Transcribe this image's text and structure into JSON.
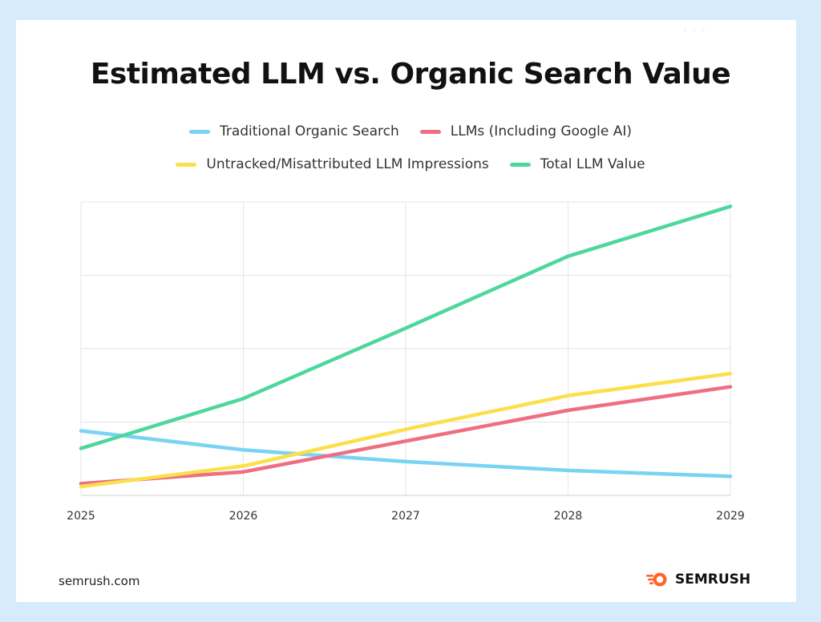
{
  "footer": {
    "site": "semrush.com",
    "brand": "SEMRUSH"
  },
  "colors": {
    "background": "#d6ecfb",
    "brand_orange": "#ff642d"
  },
  "chart_data": {
    "type": "line",
    "title": "Estimated LLM vs. Organic Search Value",
    "xlabel": "",
    "ylabel": "",
    "categories": [
      "2025",
      "2026",
      "2027",
      "2028",
      "2029"
    ],
    "ylim": [
      0,
      100
    ],
    "grid": true,
    "legend_position": "top-center",
    "series": [
      {
        "name": "Traditional Organic Search",
        "color": "#79d3f2",
        "values": [
          22,
          15.5,
          11.5,
          8.5,
          6.5
        ]
      },
      {
        "name": "LLMs (Including Google AI)",
        "color": "#ee6e83",
        "values": [
          4,
          8,
          18.5,
          29,
          37
        ]
      },
      {
        "name": "Untracked/Misattributed LLM Impressions",
        "color": "#fbe04a",
        "values": [
          3,
          10,
          22.5,
          34,
          41.5
        ]
      },
      {
        "name": "Total LLM Value",
        "color": "#4ed79d",
        "values": [
          16,
          33,
          57,
          81.5,
          98.5
        ]
      }
    ]
  }
}
